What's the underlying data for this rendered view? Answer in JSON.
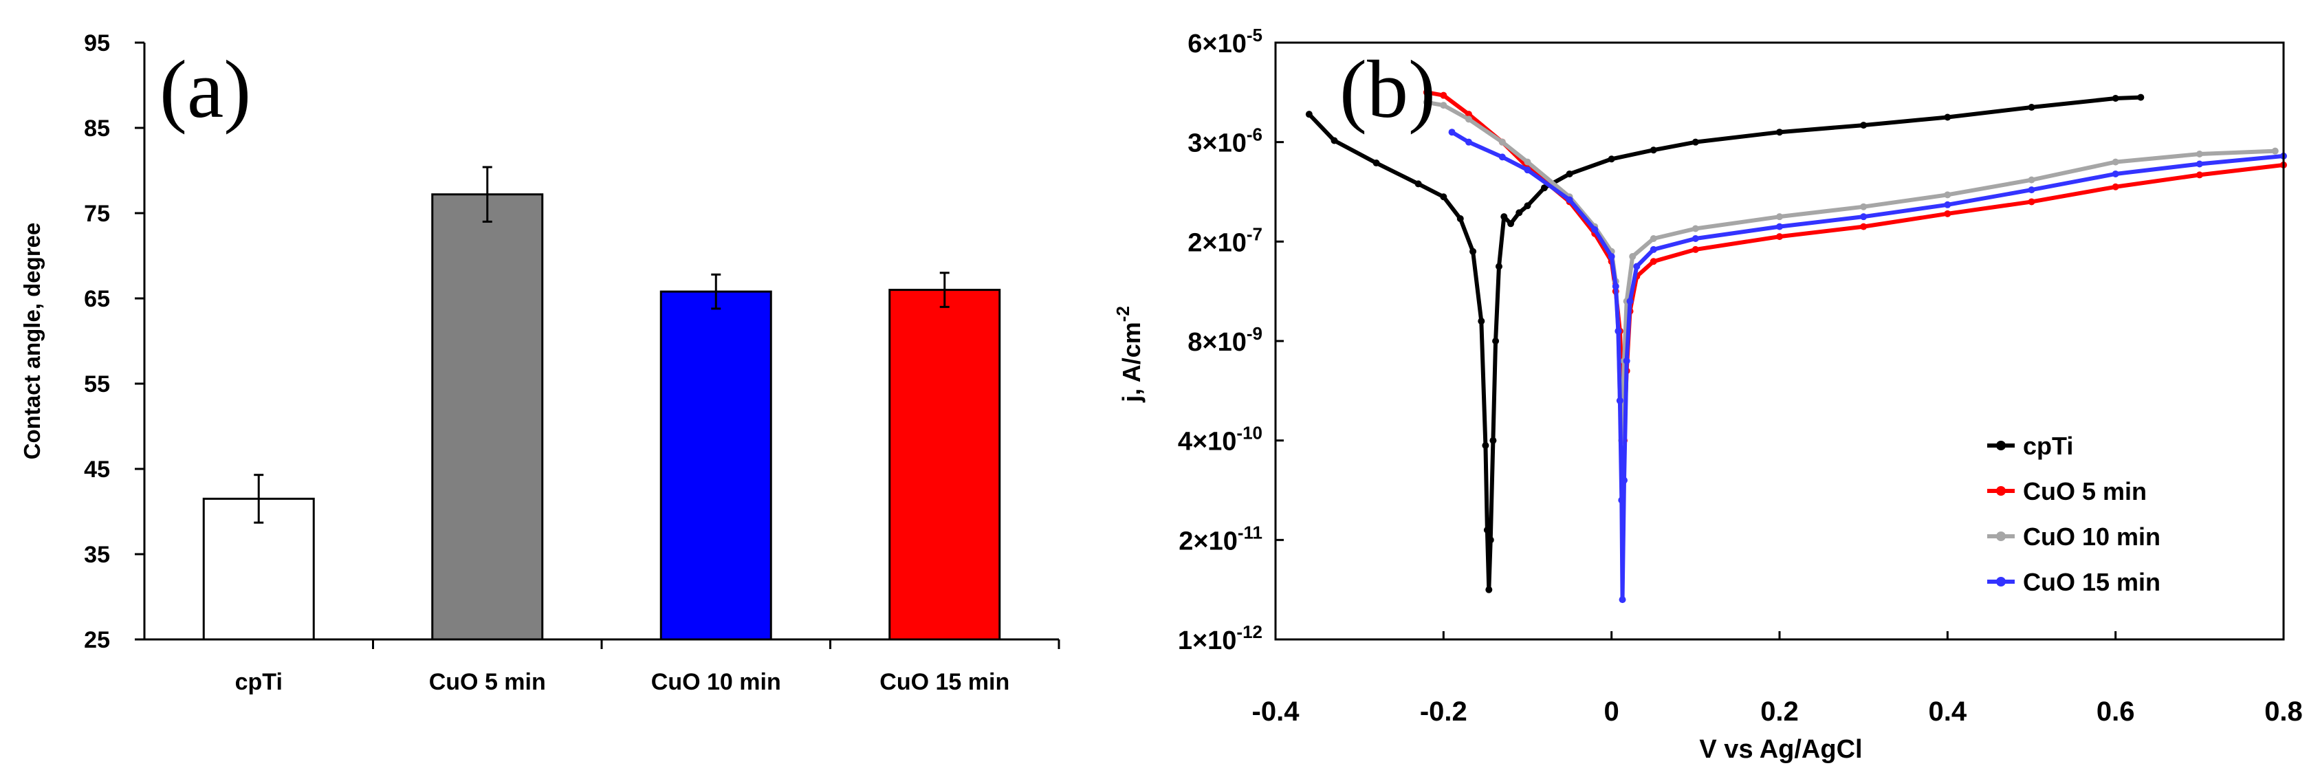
{
  "chart_data": [
    {
      "panel": "(a)",
      "type": "bar",
      "categories": [
        "cpTi",
        "CuO 5 min",
        "CuO 10 min",
        "CuO 15 min"
      ],
      "values": [
        41.5,
        77.2,
        65.8,
        66.0
      ],
      "errors": [
        2.8,
        3.2,
        2.0,
        2.0
      ],
      "colors": [
        "#ffffff",
        "#808080",
        "#0000ff",
        "#ff0000"
      ],
      "ylabel": "Contact angle, degree",
      "xlabel": "",
      "ylim": [
        25,
        95
      ],
      "yticks": [
        25,
        35,
        45,
        55,
        65,
        75,
        85,
        95
      ]
    },
    {
      "panel": "(b)",
      "type": "line",
      "xlabel": "V vs Ag/AgCl",
      "ylabel_base": "j, A/cm",
      "ylabel_sup": "-2",
      "xlim": [
        -0.4,
        0.8
      ],
      "xticks": [
        "-0.4",
        "-0.2",
        "0",
        "0.2",
        "0.4",
        "0.6",
        "0.8"
      ],
      "ytick_labels": [
        {
          "mant": "6×10",
          "exp": "-5"
        },
        {
          "mant": "3×10",
          "exp": "-6"
        },
        {
          "mant": "2×10",
          "exp": "-7"
        },
        {
          "mant": "8×10",
          "exp": "-9"
        },
        {
          "mant": "4×10",
          "exp": "-10"
        },
        {
          "mant": "2×10",
          "exp": "-11"
        },
        {
          "mant": "1×10",
          "exp": "-12"
        }
      ],
      "legend_position": "bottom-right",
      "series": [
        {
          "name": "cpTi",
          "color": "#000000",
          "points": [
            [
              -0.36,
              0.72
            ],
            [
              -0.33,
              0.985
            ],
            [
              -0.28,
              1.21
            ],
            [
              -0.23,
              1.42
            ],
            [
              -0.2,
              1.55
            ],
            [
              -0.18,
              1.77
            ],
            [
              -0.165,
              2.1
            ],
            [
              -0.155,
              2.8
            ],
            [
              -0.15,
              4.05
            ],
            [
              -0.148,
              4.9
            ],
            [
              -0.146,
              5.5
            ],
            [
              -0.144,
              5.0
            ],
            [
              -0.141,
              4.0
            ],
            [
              -0.138,
              3.0
            ],
            [
              -0.134,
              2.25
            ],
            [
              -0.128,
              1.75
            ],
            [
              -0.12,
              1.82
            ],
            [
              -0.11,
              1.71
            ],
            [
              -0.1,
              1.64
            ],
            [
              -0.08,
              1.46
            ],
            [
              -0.05,
              1.32
            ],
            [
              0,
              1.17
            ],
            [
              0.05,
              1.08
            ],
            [
              0.1,
              1.0
            ],
            [
              0.2,
              0.9
            ],
            [
              0.3,
              0.83
            ],
            [
              0.4,
              0.75
            ],
            [
              0.5,
              0.65
            ],
            [
              0.6,
              0.56
            ],
            [
              0.63,
              0.55
            ]
          ]
        },
        {
          "name": "CuO 5 min",
          "color": "#ff0000",
          "points": [
            [
              -0.22,
              0.5
            ],
            [
              -0.2,
              0.53
            ],
            [
              -0.17,
              0.72
            ],
            [
              -0.13,
              1.0
            ],
            [
              -0.1,
              1.25
            ],
            [
              -0.05,
              1.6
            ],
            [
              -0.02,
              1.92
            ],
            [
              0,
              2.2
            ],
            [
              0.005,
              2.5
            ],
            [
              0.01,
              2.9
            ],
            [
              0.012,
              3.3
            ],
            [
              0.015,
              4.0
            ],
            [
              0.018,
              3.3
            ],
            [
              0.022,
              2.7
            ],
            [
              0.03,
              2.35
            ],
            [
              0.05,
              2.2
            ],
            [
              0.1,
              2.08
            ],
            [
              0.2,
              1.95
            ],
            [
              0.3,
              1.85
            ],
            [
              0.4,
              1.72
            ],
            [
              0.5,
              1.6
            ],
            [
              0.6,
              1.45
            ],
            [
              0.7,
              1.33
            ],
            [
              0.8,
              1.23
            ]
          ]
        },
        {
          "name": "CuO 10 min",
          "color": "#a6a6a6",
          "points": [
            [
              -0.22,
              0.6
            ],
            [
              -0.2,
              0.63
            ],
            [
              -0.17,
              0.77
            ],
            [
              -0.13,
              1.0
            ],
            [
              -0.1,
              1.2
            ],
            [
              -0.05,
              1.55
            ],
            [
              -0.02,
              1.85
            ],
            [
              0,
              2.1
            ],
            [
              0.005,
              2.4
            ],
            [
              0.008,
              2.9
            ],
            [
              0.01,
              3.6
            ],
            [
              0.012,
              4.0
            ],
            [
              0.015,
              3.2
            ],
            [
              0.018,
              2.6
            ],
            [
              0.025,
              2.15
            ],
            [
              0.05,
              1.97
            ],
            [
              0.1,
              1.87
            ],
            [
              0.2,
              1.75
            ],
            [
              0.3,
              1.65
            ],
            [
              0.4,
              1.53
            ],
            [
              0.5,
              1.38
            ],
            [
              0.6,
              1.2
            ],
            [
              0.7,
              1.12
            ],
            [
              0.79,
              1.09
            ]
          ]
        },
        {
          "name": "CuO 15 min",
          "color": "#3333ff",
          "points": [
            [
              -0.19,
              0.9
            ],
            [
              -0.17,
              1.0
            ],
            [
              -0.13,
              1.15
            ],
            [
              -0.1,
              1.28
            ],
            [
              -0.05,
              1.58
            ],
            [
              -0.02,
              1.88
            ],
            [
              0,
              2.15
            ],
            [
              0.005,
              2.45
            ],
            [
              0.008,
              2.9
            ],
            [
              0.01,
              3.6
            ],
            [
              0.012,
              4.6
            ],
            [
              0.013,
              5.6
            ],
            [
              0.015,
              4.4
            ],
            [
              0.018,
              3.2
            ],
            [
              0.022,
              2.6
            ],
            [
              0.03,
              2.25
            ],
            [
              0.05,
              2.08
            ],
            [
              0.1,
              1.97
            ],
            [
              0.2,
              1.85
            ],
            [
              0.3,
              1.75
            ],
            [
              0.4,
              1.63
            ],
            [
              0.5,
              1.48
            ],
            [
              0.6,
              1.32
            ],
            [
              0.7,
              1.22
            ],
            [
              0.8,
              1.14
            ]
          ]
        }
      ]
    }
  ]
}
